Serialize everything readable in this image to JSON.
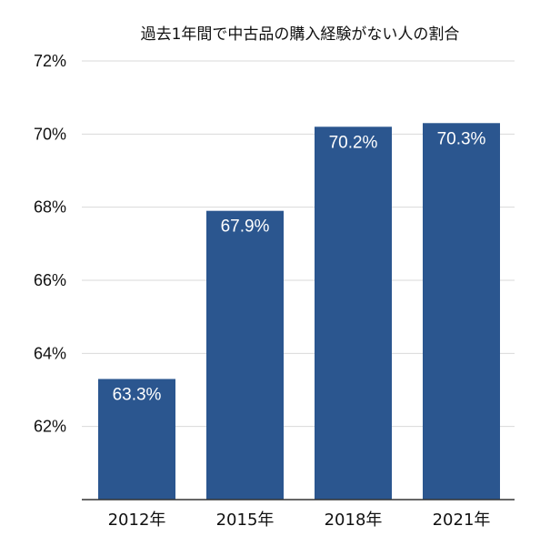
{
  "chart_data": {
    "type": "bar",
    "title": "過去1年間で中古品の購入経験がない人の割合",
    "xlabel": "",
    "ylabel": "",
    "categories": [
      "2012年",
      "2015年",
      "2018年",
      "2021年"
    ],
    "values": [
      63.3,
      67.9,
      70.2,
      70.3
    ],
    "value_labels": [
      "63.3%",
      "67.9%",
      "70.2%",
      "70.3%"
    ],
    "ylim": [
      60,
      72
    ],
    "yticks": [
      62,
      64,
      66,
      68,
      70,
      72
    ],
    "ytick_labels": [
      "62%",
      "64%",
      "66%",
      "68%",
      "70%",
      "72%"
    ],
    "grid": true,
    "bar_color": "#2b568f"
  }
}
